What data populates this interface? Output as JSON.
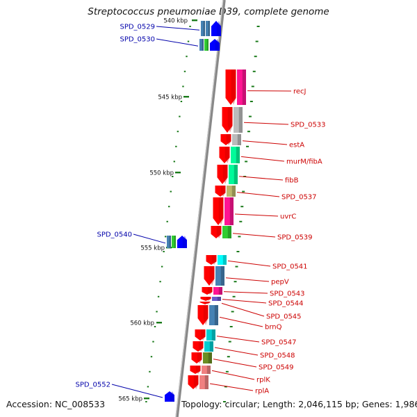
{
  "title": "Streptococcus pneumoniae D39, complete genome",
  "footer": {
    "accession": "Accession: NC_008533",
    "summary": "Topology: circular; Length: 2,046,115 bp; Genes: 1,986"
  },
  "colors": {
    "forward_gene": "#ff0000",
    "reverse_gene": "#0000ff",
    "forward_label": "#cc0000",
    "reverse_label": "#0000aa",
    "backbone": "#888888",
    "tick": "#1a7a1a"
  },
  "scale": {
    "unit": "kbp",
    "labels": [
      {
        "text": "540 kbp",
        "kbp": 540
      },
      {
        "text": "545 kbp",
        "kbp": 545
      },
      {
        "text": "550 kbp",
        "kbp": 550
      },
      {
        "text": "555 kbp",
        "kbp": 555
      },
      {
        "text": "560 kbp",
        "kbp": 560
      },
      {
        "text": "565 kbp",
        "kbp": 565
      }
    ]
  },
  "genes": [
    {
      "name": "SPD_0529",
      "strand": "reverse",
      "cog_colors": [
        "#4682b4",
        "#4682b4"
      ]
    },
    {
      "name": "SPD_0530",
      "strand": "reverse",
      "cog_colors": [
        "#4682b4",
        "#32cd32"
      ]
    },
    {
      "name": "recJ",
      "strand": "forward",
      "cog_colors": [
        "#ff1493"
      ]
    },
    {
      "name": "SPD_0533",
      "strand": "forward",
      "cog_colors": [
        "#bbbbbb"
      ]
    },
    {
      "name": "estA",
      "strand": "forward",
      "cog_colors": [
        "#bbbbbb"
      ]
    },
    {
      "name": "murM/fibA",
      "strand": "forward",
      "cog_colors": [
        "#00fa9a"
      ]
    },
    {
      "name": "fibB",
      "strand": "forward",
      "cog_colors": [
        "#00fa9a"
      ]
    },
    {
      "name": "SPD_0537",
      "strand": "forward",
      "cog_colors": [
        "#bdb76b"
      ]
    },
    {
      "name": "uvrC",
      "strand": "forward",
      "cog_colors": [
        "#ff1493"
      ]
    },
    {
      "name": "SPD_0539",
      "strand": "forward",
      "cog_colors": [
        "#32cd32"
      ]
    },
    {
      "name": "SPD_0540",
      "strand": "reverse",
      "cog_colors": [
        "#4682b4",
        "#32cd32"
      ]
    },
    {
      "name": "SPD_0541",
      "strand": "forward",
      "cog_colors": [
        "#00ffff"
      ]
    },
    {
      "name": "pepV",
      "strand": "forward",
      "cog_colors": [
        "#4682b4"
      ]
    },
    {
      "name": "SPD_0543",
      "strand": "forward",
      "cog_colors": [
        "#ff1493"
      ]
    },
    {
      "name": "SPD_0544",
      "strand": "forward",
      "cog_colors": [
        "#6a5acd"
      ]
    },
    {
      "name": "SPD_0545",
      "strand": "forward",
      "cog_colors": []
    },
    {
      "name": "brnQ",
      "strand": "forward",
      "cog_colors": [
        "#4682b4"
      ]
    },
    {
      "name": "SPD_0547",
      "strand": "forward",
      "cog_colors": [
        "#00ced1"
      ]
    },
    {
      "name": "SPD_0548",
      "strand": "forward",
      "cog_colors": [
        "#00ced1"
      ]
    },
    {
      "name": "SPD_0549",
      "strand": "forward",
      "cog_colors": [
        "#6b8e23"
      ]
    },
    {
      "name": "rplK",
      "strand": "forward",
      "cog_colors": [
        "#f08080"
      ]
    },
    {
      "name": "rplA",
      "strand": "forward",
      "cog_colors": [
        "#f08080"
      ]
    },
    {
      "name": "SPD_0552",
      "strand": "reverse",
      "cog_colors": []
    }
  ]
}
